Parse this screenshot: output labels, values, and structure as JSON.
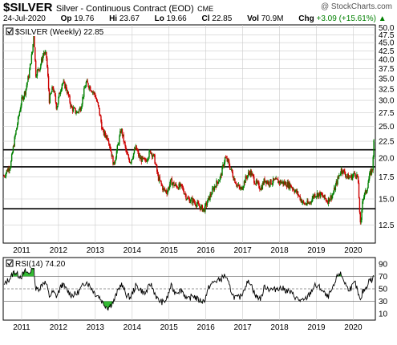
{
  "header": {
    "symbol": "$SILVER",
    "description": "Silver - Continuous Contract (EOD)",
    "exchange": "CME",
    "watermark": "@ StockCharts.com",
    "date": "24-Jul-2020",
    "open_label": "Op",
    "open": "19.76",
    "high_label": "Hi",
    "high": "23.67",
    "low_label": "Lo",
    "low": "19.66",
    "close_label": "Cl",
    "close": "22.85",
    "vol_label": "Vol",
    "vol": "70.9M",
    "chg_label": "Chg",
    "chg": "+3.09 (+15.61%)",
    "chg_arrow": "▲"
  },
  "colors": {
    "up": "#008000",
    "down": "#cc0000",
    "line": "#000000",
    "grid": "#cccccc",
    "rsi_fill": "#00aa00"
  },
  "chart_data": [
    {
      "type": "candlestick",
      "legend": "$SILVER (Weekly) 22.85",
      "legend_icon": "checkbox-icon",
      "x_labels": [
        "2011",
        "2012",
        "2013",
        "2014",
        "2015",
        "2016",
        "2017",
        "2018",
        "2019",
        "2020"
      ],
      "x_start": 2010.5,
      "x_end": 2020.6,
      "y_log": true,
      "ylim": [
        11.0,
        51.0
      ],
      "y_ticks": [
        12.5,
        15.0,
        17.5,
        20.0,
        22.5,
        25.0,
        27.5,
        30.0,
        32.5,
        35.0,
        37.5,
        40.0,
        42.5,
        45.0,
        47.5,
        50.0
      ],
      "y_tick_labels": [
        "12.5",
        "15.0",
        "17.5",
        "20.0",
        "22.5",
        "25.0",
        "27.5",
        "30.0",
        "32.5",
        "35.0",
        "37.5",
        "40.0",
        "42.5",
        "45.0",
        "47.5",
        "50.0"
      ],
      "horizontal_lines": [
        21.2,
        18.8,
        14.0
      ],
      "close_path": [
        [
          2010.52,
          17.6
        ],
        [
          2010.6,
          18.3
        ],
        [
          2010.7,
          19.0
        ],
        [
          2010.8,
          22.5
        ],
        [
          2010.9,
          26.0
        ],
        [
          2011.0,
          30.0
        ],
        [
          2011.1,
          32.0
        ],
        [
          2011.2,
          36.0
        ],
        [
          2011.3,
          43.0
        ],
        [
          2011.33,
          48.5
        ],
        [
          2011.38,
          36.0
        ],
        [
          2011.5,
          38.0
        ],
        [
          2011.6,
          42.0
        ],
        [
          2011.67,
          41.0
        ],
        [
          2011.75,
          30.0
        ],
        [
          2011.85,
          33.0
        ],
        [
          2011.95,
          28.5
        ],
        [
          2012.1,
          34.0
        ],
        [
          2012.2,
          33.0
        ],
        [
          2012.35,
          28.5
        ],
        [
          2012.5,
          27.5
        ],
        [
          2012.6,
          28.5
        ],
        [
          2012.75,
          34.0
        ],
        [
          2012.85,
          33.0
        ],
        [
          2013.0,
          31.0
        ],
        [
          2013.1,
          28.0
        ],
        [
          2013.2,
          24.0
        ],
        [
          2013.35,
          23.0
        ],
        [
          2013.5,
          19.0
        ],
        [
          2013.62,
          22.0
        ],
        [
          2013.7,
          24.5
        ],
        [
          2013.85,
          20.5
        ],
        [
          2013.95,
          19.5
        ],
        [
          2014.1,
          21.5
        ],
        [
          2014.2,
          20.0
        ],
        [
          2014.35,
          19.5
        ],
        [
          2014.5,
          21.0
        ],
        [
          2014.6,
          20.0
        ],
        [
          2014.7,
          17.5
        ],
        [
          2014.85,
          16.0
        ],
        [
          2014.95,
          15.8
        ],
        [
          2015.05,
          17.0
        ],
        [
          2015.15,
          16.5
        ],
        [
          2015.35,
          16.3
        ],
        [
          2015.5,
          15.0
        ],
        [
          2015.65,
          14.8
        ],
        [
          2015.8,
          14.3
        ],
        [
          2015.95,
          13.9
        ],
        [
          2016.1,
          15.2
        ],
        [
          2016.25,
          16.5
        ],
        [
          2016.4,
          17.5
        ],
        [
          2016.52,
          20.0
        ],
        [
          2016.6,
          19.5
        ],
        [
          2016.75,
          17.5
        ],
        [
          2016.85,
          16.5
        ],
        [
          2016.95,
          16.0
        ],
        [
          2017.1,
          17.5
        ],
        [
          2017.2,
          18.2
        ],
        [
          2017.35,
          16.8
        ],
        [
          2017.5,
          16.2
        ],
        [
          2017.6,
          17.2
        ],
        [
          2017.7,
          16.8
        ],
        [
          2017.85,
          17.0
        ],
        [
          2017.95,
          17.0
        ],
        [
          2018.1,
          16.8
        ],
        [
          2018.3,
          16.5
        ],
        [
          2018.5,
          15.5
        ],
        [
          2018.65,
          14.5
        ],
        [
          2018.8,
          14.5
        ],
        [
          2018.95,
          15.5
        ],
        [
          2019.1,
          15.5
        ],
        [
          2019.3,
          14.8
        ],
        [
          2019.45,
          15.5
        ],
        [
          2019.6,
          17.5
        ],
        [
          2019.68,
          18.5
        ],
        [
          2019.85,
          17.5
        ],
        [
          2019.95,
          17.5
        ],
        [
          2020.05,
          18.0
        ],
        [
          2020.12,
          17.5
        ],
        [
          2020.2,
          12.0
        ],
        [
          2020.25,
          15.0
        ],
        [
          2020.35,
          15.8
        ],
        [
          2020.45,
          17.8
        ],
        [
          2020.52,
          18.5
        ],
        [
          2020.56,
          22.5
        ]
      ]
    },
    {
      "type": "line",
      "legend": "RSI(14) 74.20",
      "legend_icon": "checkbox-icon",
      "ylim": [
        0,
        100
      ],
      "y_ticks": [
        10,
        30,
        50,
        70,
        90
      ],
      "y_tick_labels": [
        "10",
        "30",
        "50",
        "70",
        "90"
      ],
      "reference_lines": [
        30,
        50,
        70
      ],
      "x_labels": [
        "2011",
        "2012",
        "2013",
        "2014",
        "2015",
        "2016",
        "2017",
        "2018",
        "2019",
        "2020"
      ],
      "values": [
        [
          2010.52,
          55
        ],
        [
          2010.6,
          62
        ],
        [
          2010.7,
          68
        ],
        [
          2010.8,
          78
        ],
        [
          2010.9,
          72
        ],
        [
          2011.0,
          70
        ],
        [
          2011.1,
          78
        ],
        [
          2011.2,
          74
        ],
        [
          2011.3,
          85
        ],
        [
          2011.33,
          88
        ],
        [
          2011.38,
          48
        ],
        [
          2011.5,
          52
        ],
        [
          2011.6,
          62
        ],
        [
          2011.67,
          58
        ],
        [
          2011.75,
          38
        ],
        [
          2011.85,
          45
        ],
        [
          2011.95,
          38
        ],
        [
          2012.1,
          58
        ],
        [
          2012.2,
          50
        ],
        [
          2012.35,
          40
        ],
        [
          2012.5,
          42
        ],
        [
          2012.6,
          50
        ],
        [
          2012.75,
          62
        ],
        [
          2012.85,
          55
        ],
        [
          2013.0,
          42
        ],
        [
          2013.1,
          38
        ],
        [
          2013.2,
          28
        ],
        [
          2013.3,
          22
        ],
        [
          2013.35,
          20
        ],
        [
          2013.5,
          30
        ],
        [
          2013.62,
          48
        ],
        [
          2013.7,
          58
        ],
        [
          2013.85,
          40
        ],
        [
          2013.95,
          36
        ],
        [
          2014.1,
          55
        ],
        [
          2014.2,
          50
        ],
        [
          2014.35,
          42
        ],
        [
          2014.5,
          58
        ],
        [
          2014.6,
          45
        ],
        [
          2014.7,
          32
        ],
        [
          2014.85,
          28
        ],
        [
          2014.95,
          35
        ],
        [
          2015.05,
          55
        ],
        [
          2015.15,
          45
        ],
        [
          2015.35,
          48
        ],
        [
          2015.5,
          32
        ],
        [
          2015.65,
          40
        ],
        [
          2015.8,
          32
        ],
        [
          2015.95,
          30
        ],
        [
          2016.1,
          55
        ],
        [
          2016.25,
          62
        ],
        [
          2016.4,
          65
        ],
        [
          2016.52,
          72
        ],
        [
          2016.6,
          60
        ],
        [
          2016.75,
          38
        ],
        [
          2016.85,
          35
        ],
        [
          2016.95,
          38
        ],
        [
          2017.1,
          58
        ],
        [
          2017.2,
          62
        ],
        [
          2017.35,
          38
        ],
        [
          2017.5,
          35
        ],
        [
          2017.6,
          55
        ],
        [
          2017.7,
          50
        ],
        [
          2017.85,
          48
        ],
        [
          2017.95,
          52
        ],
        [
          2018.1,
          50
        ],
        [
          2018.3,
          44
        ],
        [
          2018.5,
          33
        ],
        [
          2018.65,
          30
        ],
        [
          2018.8,
          40
        ],
        [
          2018.95,
          55
        ],
        [
          2019.1,
          52
        ],
        [
          2019.3,
          36
        ],
        [
          2019.45,
          50
        ],
        [
          2019.6,
          75
        ],
        [
          2019.68,
          72
        ],
        [
          2019.85,
          50
        ],
        [
          2019.95,
          52
        ],
        [
          2020.05,
          60
        ],
        [
          2020.12,
          45
        ],
        [
          2020.2,
          28
        ],
        [
          2020.25,
          45
        ],
        [
          2020.35,
          52
        ],
        [
          2020.45,
          66
        ],
        [
          2020.52,
          62
        ],
        [
          2020.56,
          74
        ]
      ]
    }
  ]
}
